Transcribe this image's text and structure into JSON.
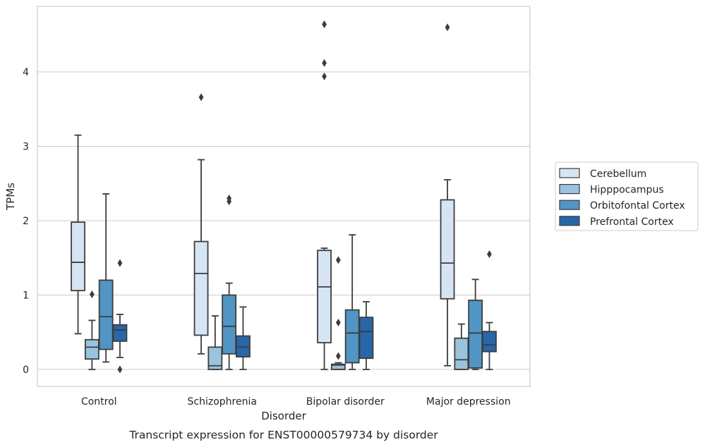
{
  "chart_data": {
    "type": "box",
    "title": "",
    "caption": "Transcript expression for ENST00000579734 by disorder",
    "xlabel": "Disorder",
    "ylabel": "TPMs",
    "ylim": [
      -0.22,
      4.87
    ],
    "yticks": [
      0,
      1,
      2,
      3,
      4
    ],
    "grid": "horizontal",
    "legend_position": "right",
    "categories": [
      "Control",
      "Schizophrenia",
      "Bipolar disorder",
      "Major depression"
    ],
    "series": [
      {
        "name": "Cerebellum",
        "color": "#d6e4f3",
        "boxes": [
          {
            "whisker_low": 0.48,
            "q1": 1.06,
            "median": 1.44,
            "q3": 1.98,
            "whisker_high": 3.15,
            "outliers": []
          },
          {
            "whisker_low": 0.21,
            "q1": 0.46,
            "median": 1.29,
            "q3": 1.72,
            "whisker_high": 2.82,
            "outliers": [
              3.66
            ]
          },
          {
            "whisker_low": 0.0,
            "q1": 0.36,
            "median": 1.11,
            "q3": 1.6,
            "whisker_high": 1.63,
            "outliers": [
              3.94,
              4.12,
              4.64
            ]
          },
          {
            "whisker_low": 0.05,
            "q1": 0.95,
            "median": 1.43,
            "q3": 2.28,
            "whisker_high": 2.55,
            "outliers": [
              4.6
            ]
          }
        ]
      },
      {
        "name": "Hipppocampus",
        "color": "#9ac3de",
        "boxes": [
          {
            "whisker_low": 0.0,
            "q1": 0.14,
            "median": 0.3,
            "q3": 0.4,
            "whisker_high": 0.66,
            "outliers": [
              1.01
            ]
          },
          {
            "whisker_low": 0.0,
            "q1": 0.0,
            "median": 0.05,
            "q3": 0.3,
            "whisker_high": 0.72,
            "outliers": []
          },
          {
            "whisker_low": 0.0,
            "q1": 0.0,
            "median": 0.06,
            "q3": 0.07,
            "whisker_high": 0.09,
            "outliers": [
              0.18,
              0.63,
              1.47
            ]
          },
          {
            "whisker_low": 0.0,
            "q1": 0.0,
            "median": 0.13,
            "q3": 0.42,
            "whisker_high": 0.61,
            "outliers": []
          }
        ]
      },
      {
        "name": "Orbitofontal Cortex",
        "color": "#5195c5",
        "boxes": [
          {
            "whisker_low": 0.1,
            "q1": 0.27,
            "median": 0.71,
            "q3": 1.2,
            "whisker_high": 2.36,
            "outliers": []
          },
          {
            "whisker_low": 0.0,
            "q1": 0.21,
            "median": 0.58,
            "q3": 1.0,
            "whisker_high": 1.16,
            "outliers": [
              2.26,
              2.3
            ]
          },
          {
            "whisker_low": 0.0,
            "q1": 0.09,
            "median": 0.49,
            "q3": 0.8,
            "whisker_high": 1.81,
            "outliers": []
          },
          {
            "whisker_low": 0.0,
            "q1": 0.02,
            "median": 0.49,
            "q3": 0.93,
            "whisker_high": 1.21,
            "outliers": []
          }
        ]
      },
      {
        "name": "Prefrontal Cortex",
        "color": "#2766a8",
        "boxes": [
          {
            "whisker_low": 0.16,
            "q1": 0.38,
            "median": 0.53,
            "q3": 0.6,
            "whisker_high": 0.74,
            "outliers": [
              0.0,
              1.43
            ]
          },
          {
            "whisker_low": 0.0,
            "q1": 0.17,
            "median": 0.3,
            "q3": 0.45,
            "whisker_high": 0.84,
            "outliers": []
          },
          {
            "whisker_low": 0.0,
            "q1": 0.15,
            "median": 0.51,
            "q3": 0.7,
            "whisker_high": 0.91,
            "outliers": []
          },
          {
            "whisker_low": 0.0,
            "q1": 0.24,
            "median": 0.33,
            "q3": 0.51,
            "whisker_high": 0.63,
            "outliers": [
              1.55
            ]
          }
        ]
      }
    ]
  }
}
